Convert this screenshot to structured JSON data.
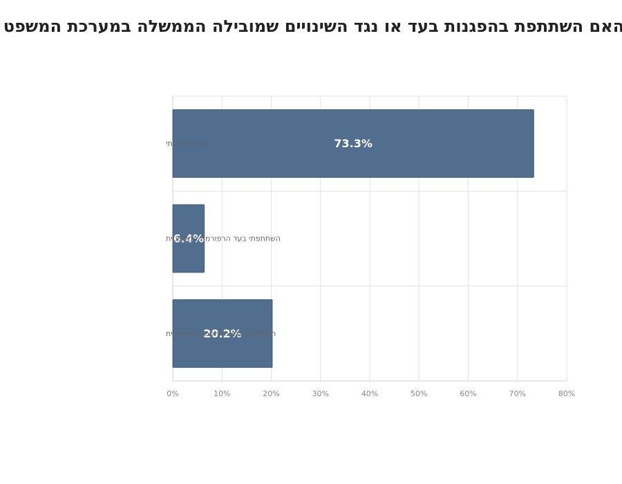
{
  "chart_data": {
    "type": "bar",
    "orientation": "horizontal",
    "title": "האם השתתפת בהפגנות בעד או נגד השינויים שמובילה הממשלה במערכת המשפט",
    "categories": [
      "לא השתתפתי",
      "השתתפתי בעד הרפורמה המשפטית",
      "השתתפתי נגד המהפכה המשפטית"
    ],
    "values": [
      73.3,
      6.4,
      20.2
    ],
    "data_labels": [
      "73.3%",
      "6.4%",
      "20.2%"
    ],
    "xlim": [
      0,
      80
    ],
    "x_ticks": [
      0,
      10,
      20,
      30,
      40,
      50,
      60,
      70,
      80
    ],
    "x_tick_labels": [
      "0%",
      "10%",
      "20%",
      "30%",
      "40%",
      "50%",
      "60%",
      "70%",
      "80%"
    ],
    "xlabel": "",
    "ylabel": "",
    "grid": true,
    "legend": "none",
    "colors": {
      "bar": "#516e8f",
      "bar_border": "#3f5a78",
      "data_label": "#ffffff"
    }
  }
}
